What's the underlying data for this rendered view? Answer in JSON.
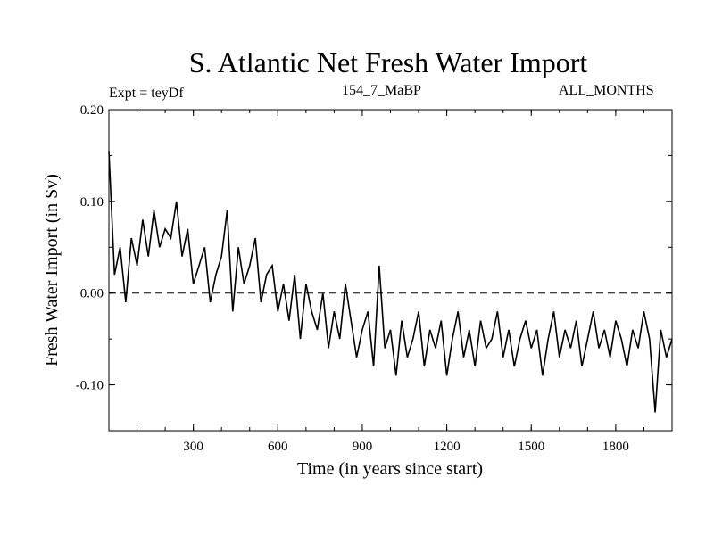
{
  "header": {
    "title": "S. Atlantic Net Fresh Water Import",
    "expt": "Expt = teyDf",
    "run": "154_7_MaBP",
    "months": "ALL_MONTHS"
  },
  "chart_data": {
    "type": "line",
    "title": "S. Atlantic Net Fresh Water Import",
    "xlabel": "Time (in years since start)",
    "ylabel": "Fresh Water Import (in Sv)",
    "xlim": [
      0,
      2000
    ],
    "ylim": [
      -0.15,
      0.2
    ],
    "xticks": [
      300,
      600,
      900,
      1200,
      1500,
      1800
    ],
    "xtick_labels": [
      "300",
      "600",
      "900",
      "1200",
      "1500",
      "1800"
    ],
    "yticks": [
      0.2,
      0.1,
      0.0,
      -0.1
    ],
    "ytick_labels": [
      "0.20",
      "0.10",
      "0.00",
      "-0.10"
    ],
    "reference_line": {
      "y": 0.0,
      "style": "dashed"
    },
    "series": [
      {
        "name": "net fresh water import",
        "x": [
          0,
          20,
          40,
          60,
          80,
          100,
          120,
          140,
          160,
          180,
          200,
          220,
          240,
          260,
          280,
          300,
          320,
          340,
          360,
          380,
          400,
          420,
          440,
          460,
          480,
          500,
          520,
          540,
          560,
          580,
          600,
          620,
          640,
          660,
          680,
          700,
          720,
          740,
          760,
          780,
          800,
          820,
          840,
          860,
          880,
          900,
          920,
          940,
          960,
          980,
          1000,
          1020,
          1040,
          1060,
          1080,
          1100,
          1120,
          1140,
          1160,
          1180,
          1200,
          1220,
          1240,
          1260,
          1280,
          1300,
          1320,
          1340,
          1360,
          1380,
          1400,
          1420,
          1440,
          1460,
          1480,
          1500,
          1520,
          1540,
          1560,
          1580,
          1600,
          1620,
          1640,
          1660,
          1680,
          1700,
          1720,
          1740,
          1760,
          1780,
          1800,
          1820,
          1840,
          1860,
          1880,
          1900,
          1920,
          1940,
          1960,
          1980,
          2000
        ],
        "values": [
          0.155,
          0.02,
          0.05,
          -0.01,
          0.06,
          0.03,
          0.08,
          0.04,
          0.09,
          0.05,
          0.07,
          0.06,
          0.1,
          0.04,
          0.07,
          0.01,
          0.03,
          0.05,
          -0.01,
          0.02,
          0.04,
          0.09,
          -0.02,
          0.05,
          0.01,
          0.03,
          0.06,
          -0.01,
          0.02,
          0.03,
          -0.02,
          0.01,
          -0.03,
          0.02,
          -0.05,
          0.01,
          -0.02,
          -0.04,
          0.0,
          -0.06,
          -0.02,
          -0.05,
          0.01,
          -0.03,
          -0.07,
          -0.04,
          -0.02,
          -0.08,
          0.03,
          -0.06,
          -0.04,
          -0.09,
          -0.03,
          -0.07,
          -0.05,
          -0.02,
          -0.08,
          -0.04,
          -0.06,
          -0.03,
          -0.09,
          -0.05,
          -0.02,
          -0.07,
          -0.04,
          -0.08,
          -0.03,
          -0.06,
          -0.05,
          -0.02,
          -0.07,
          -0.04,
          -0.08,
          -0.05,
          -0.03,
          -0.06,
          -0.04,
          -0.09,
          -0.05,
          -0.02,
          -0.07,
          -0.04,
          -0.06,
          -0.03,
          -0.08,
          -0.05,
          -0.02,
          -0.06,
          -0.04,
          -0.07,
          -0.03,
          -0.05,
          -0.08,
          -0.04,
          -0.06,
          -0.02,
          -0.05,
          -0.13,
          -0.04,
          -0.07,
          -0.05
        ]
      }
    ]
  }
}
